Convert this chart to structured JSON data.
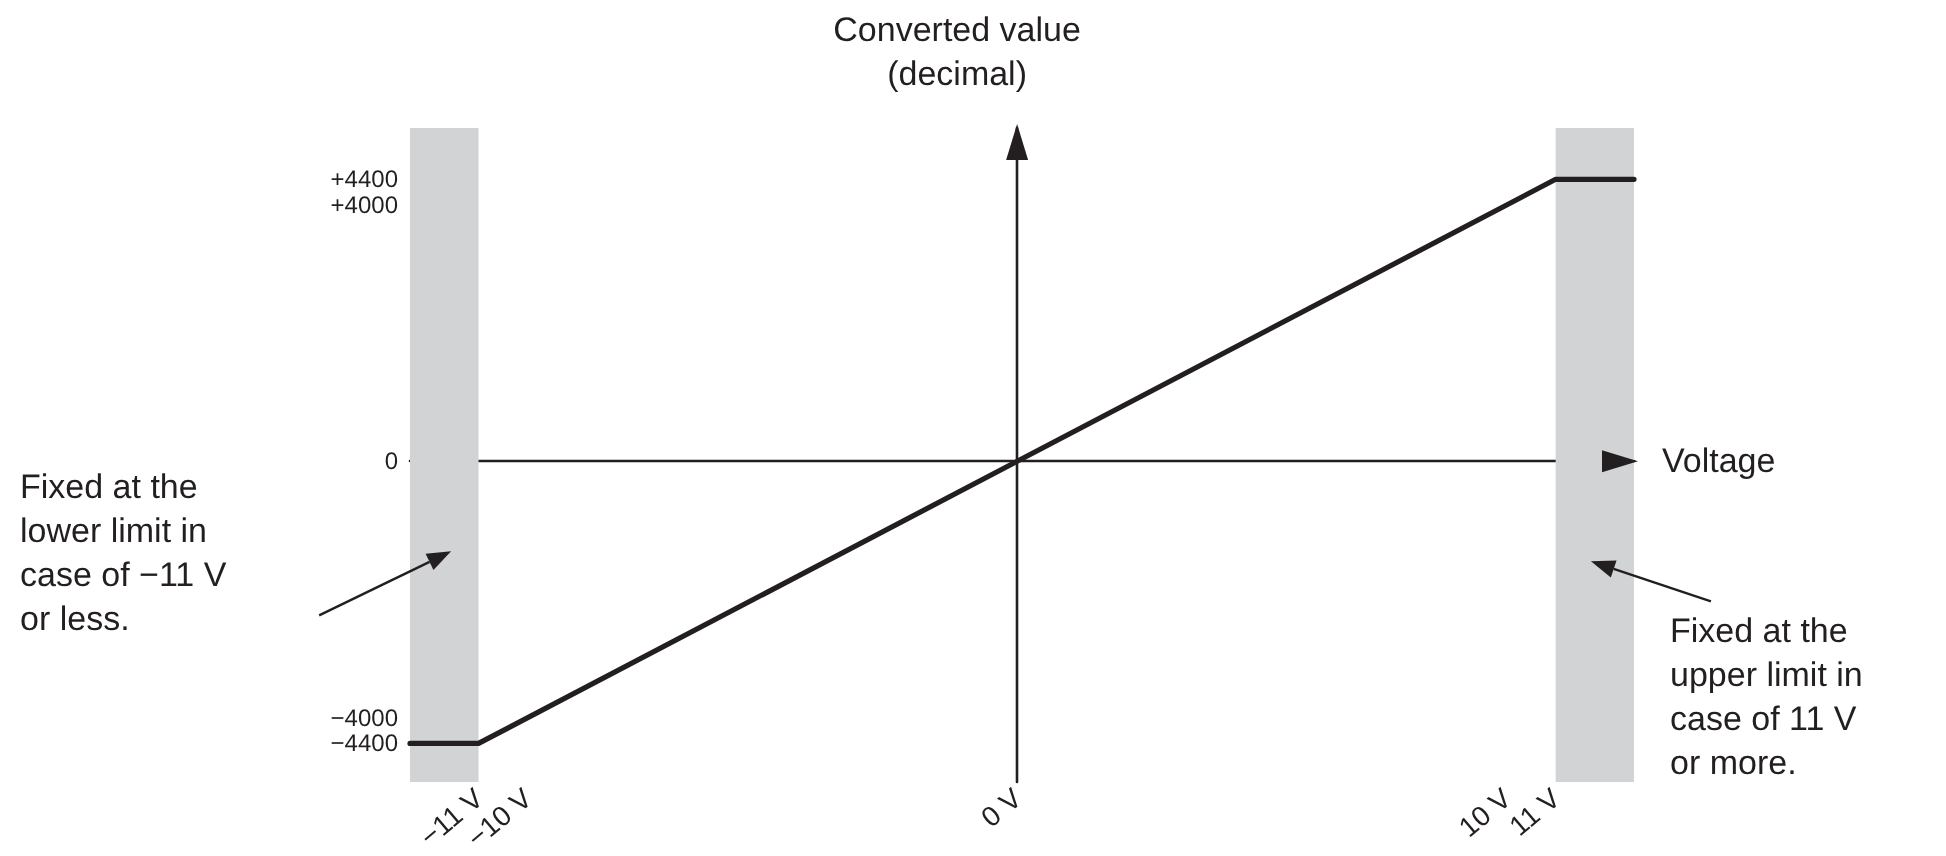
{
  "chart_data": {
    "type": "line",
    "xlabel": "Voltage",
    "ylabel": "Converted value\n(decimal)",
    "x": [
      -12.4,
      -11,
      11,
      12.6
    ],
    "series": [
      {
        "color": "#231f20",
        "values": [
          -4400,
          -4400,
          4400,
          4400
        ]
      }
    ],
    "xlim": [
      -12.4,
      12.6
    ],
    "ylim": [
      -5000,
      5200
    ],
    "xticks": [
      {
        "value": -11,
        "label": "−11 V"
      },
      {
        "value": -10,
        "label": "−10 V"
      },
      {
        "value": 0,
        "label": "0 V"
      },
      {
        "value": 10,
        "label": "10 V"
      },
      {
        "value": 11,
        "label": "11 V"
      }
    ],
    "yticks": [
      {
        "value": -4400,
        "label": "−4400"
      },
      {
        "value": -4000,
        "label": "−4000"
      },
      {
        "value": 0,
        "label": "0"
      },
      {
        "value": 4000,
        "label": "+4000"
      },
      {
        "value": 4400,
        "label": "+4400"
      }
    ],
    "bands": [
      {
        "axis": "x",
        "from": -12.4,
        "to": -11,
        "color": "#d1d3d4"
      },
      {
        "axis": "x",
        "from": 11,
        "to": 12.6,
        "color": "#d1d3d4"
      }
    ],
    "annotations": [
      "Fixed at the\nlower limit in\ncase of −11 V\nor less.",
      "Fixed at the\nupper limit in\ncase of 11 V\nor more."
    ],
    "marker": "none",
    "line_style": "solid"
  }
}
